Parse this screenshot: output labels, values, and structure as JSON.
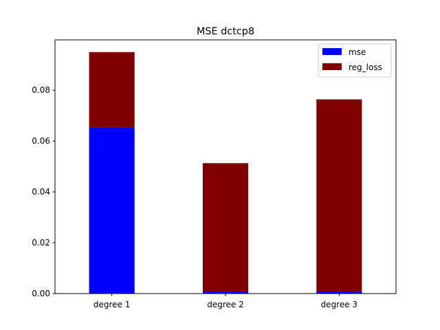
{
  "chart_data": {
    "type": "bar",
    "stacked": true,
    "title": "MSE dctcp8",
    "xlabel": "",
    "ylabel": "",
    "categories": [
      "degree 1",
      "degree 2",
      "degree 3"
    ],
    "series": [
      {
        "name": "mse",
        "color": "#0000ff",
        "values": [
          0.0655,
          0.0008,
          0.0008
        ]
      },
      {
        "name": "reg_loss",
        "color": "#800000",
        "values": [
          0.0295,
          0.0505,
          0.0756
        ]
      }
    ],
    "ylim": [
      0,
      0.0998
    ],
    "yticks": [
      "0.00",
      "0.02",
      "0.04",
      "0.06",
      "0.08"
    ],
    "ytick_values": [
      0,
      0.02,
      0.04,
      0.06,
      0.08
    ],
    "legend_position": "upper right",
    "grid": false
  }
}
